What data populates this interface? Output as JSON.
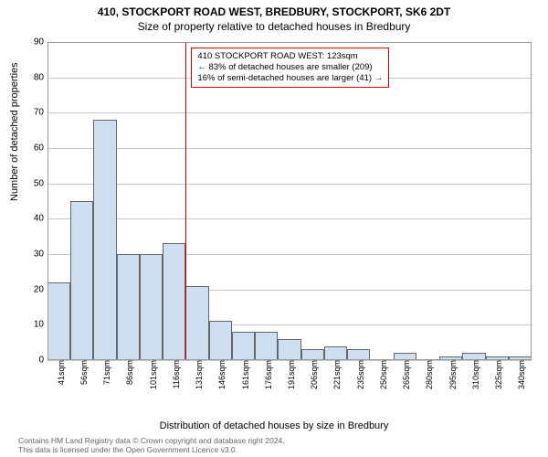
{
  "title_line1": "410, STOCKPORT ROAD WEST, BREDBURY, STOCKPORT, SK6 2DT",
  "title_line2": "Size of property relative to detached houses in Bredbury",
  "ylabel": "Number of detached properties",
  "xlabel": "Distribution of detached houses by size in Bredbury",
  "chart": {
    "type": "histogram",
    "bar_fill": "#cfdff2",
    "bar_border": "#666666",
    "grid_color": "#c6c6c6",
    "background_color": "#ffffff",
    "ylim": [
      0,
      90
    ],
    "ytick_step": 10,
    "yticks": [
      0,
      10,
      20,
      30,
      40,
      50,
      60,
      70,
      80,
      90
    ],
    "xticks": [
      "41sqm",
      "56sqm",
      "71sqm",
      "86sqm",
      "101sqm",
      "116sqm",
      "131sqm",
      "146sqm",
      "161sqm",
      "176sqm",
      "191sqm",
      "206sqm",
      "221sqm",
      "235sqm",
      "250sqm",
      "265sqm",
      "280sqm",
      "295sqm",
      "310sqm",
      "325sqm",
      "340sqm"
    ],
    "values": [
      22,
      45,
      68,
      30,
      30,
      33,
      21,
      11,
      8,
      8,
      6,
      3,
      4,
      3,
      0,
      2,
      0,
      1,
      2,
      1,
      1
    ],
    "reference_line": {
      "bin_index": 6,
      "color": "#d40000"
    }
  },
  "legend": {
    "border_color": "#d40000",
    "line1": "410 STOCKPORT ROAD WEST: 123sqm",
    "line2": "← 83% of detached houses are smaller (209)",
    "line3": "16% of semi-detached houses are larger (41) →"
  },
  "footer": {
    "line1": "Contains HM Land Registry data © Crown copyright and database right 2024.",
    "line2": "This data is licensed under the Open Government Licence v3.0."
  }
}
